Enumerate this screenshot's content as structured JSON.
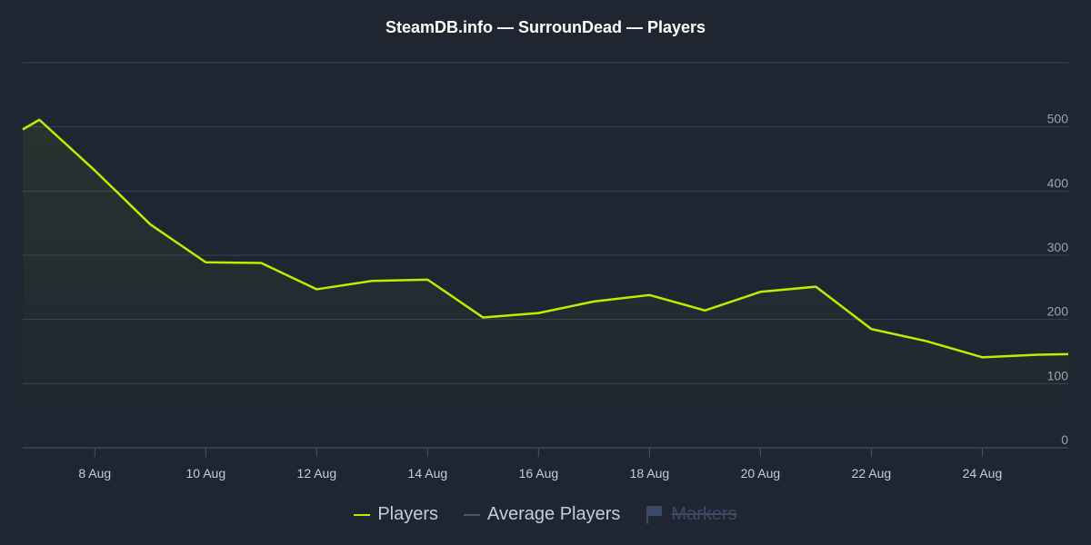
{
  "title": "SteamDB.info — SurrounDead — Players",
  "colors": {
    "background": "#1f2632",
    "players_line": "#b8f000",
    "average_line": "#4a5568",
    "grid": "#3a4350",
    "axis_text": "#9aa3ad",
    "markers_hidden": "#3a4b66"
  },
  "legend": {
    "players": "Players",
    "average": "Average Players",
    "markers": "Markers",
    "markers_icon": "flag-icon"
  },
  "chart_data": {
    "type": "area",
    "title": "SteamDB.info — SurrounDead — Players",
    "xlabel": "",
    "ylabel": "",
    "y_axis_position": "right",
    "grid": true,
    "legend_placement": "bottom-center",
    "ylim": [
      0,
      600
    ],
    "yticks": [
      0,
      100,
      200,
      300,
      400,
      500
    ],
    "xlim": [
      6.7,
      25.55
    ],
    "xticks": [
      {
        "value": 8,
        "label": "8 Aug"
      },
      {
        "value": 10,
        "label": "10 Aug"
      },
      {
        "value": 12,
        "label": "12 Aug"
      },
      {
        "value": 14,
        "label": "14 Aug"
      },
      {
        "value": 16,
        "label": "16 Aug"
      },
      {
        "value": 18,
        "label": "18 Aug"
      },
      {
        "value": 20,
        "label": "20 Aug"
      },
      {
        "value": 22,
        "label": "22 Aug"
      },
      {
        "value": 24,
        "label": "24 Aug"
      }
    ],
    "series": [
      {
        "name": "Players",
        "x": [
          6.7,
          7,
          8,
          9,
          10,
          11,
          12,
          13,
          14,
          15,
          16,
          17,
          18,
          19,
          20,
          21,
          22,
          23,
          24,
          25,
          25.55
        ],
        "values": [
          496,
          511,
          432,
          348,
          289,
          288,
          247,
          260,
          262,
          203,
          210,
          228,
          238,
          214,
          243,
          251,
          185,
          166,
          141,
          145,
          146
        ]
      }
    ]
  }
}
